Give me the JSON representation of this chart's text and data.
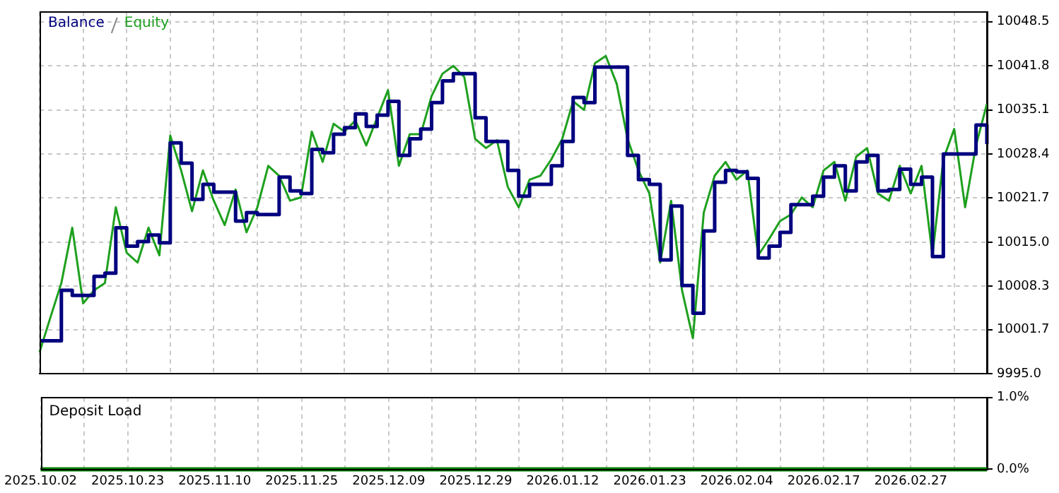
{
  "chart_data": [
    {
      "type": "line",
      "legend": "top left",
      "grid": true,
      "marker": "none",
      "tick_labels": "y",
      "categories": [
        "2025.10.02",
        null,
        null,
        null,
        null,
        null,
        null,
        null,
        "2025.10.23",
        null,
        null,
        null,
        null,
        null,
        null,
        null,
        "2025.11.10",
        null,
        null,
        null,
        null,
        null,
        null,
        null,
        "2025.11.25",
        null,
        null,
        null,
        null,
        null,
        null,
        null,
        "2025.12.09",
        null,
        null,
        null,
        null,
        null,
        null,
        null,
        "2025.12.29",
        null,
        null,
        null,
        null,
        null,
        null,
        null,
        "2026.01.12",
        null,
        null,
        null,
        null,
        null,
        null,
        null,
        "2026.01.23",
        null,
        null,
        null,
        null,
        null,
        null,
        null,
        "2026.02.04",
        null,
        null,
        null,
        null,
        null,
        null,
        null,
        "2026.02.17",
        null,
        null,
        null,
        null,
        null,
        null,
        null,
        "2026.02.27",
        null,
        null,
        null,
        null,
        null,
        null,
        null
      ],
      "ylim": [
        9995,
        10050
      ],
      "yticks": [
        {
          "value": 9995,
          "label": "9995.0"
        },
        10001.7,
        10008.3,
        {
          "value": 10015,
          "label": "10015.0"
        },
        10021.7,
        10028.4,
        10035.1,
        10041.8,
        10048.5
      ],
      "series": [
        {
          "name": "Balance",
          "type": "step",
          "color": "#00007f",
          "values": [
            10000.0,
            10000.0,
            10007.7,
            10006.9,
            10006.9,
            10009.8,
            10010.3,
            10017.2,
            10014.4,
            10015.1,
            10016.1,
            10014.9,
            10030.1,
            10027.0,
            10021.5,
            10023.8,
            10022.6,
            10022.6,
            10018.2,
            10019.5,
            10019.2,
            10019.2,
            10024.9,
            10022.8,
            10022.4,
            10029.1,
            10028.6,
            10031.4,
            10032.4,
            10034.5,
            10032.6,
            10034.3,
            10036.4,
            10028.2,
            10030.7,
            10032.2,
            10036.2,
            10039.5,
            10040.6,
            10040.6,
            10033.9,
            10030.3,
            10030.3,
            10025.9,
            10022.0,
            10023.8,
            10023.8,
            10026.6,
            10030.3,
            10037.0,
            10036.2,
            10041.6,
            10041.6,
            10041.6,
            10028.2,
            10024.5,
            10023.8,
            10012.3,
            10020.5,
            10008.4,
            10004.2,
            10016.7,
            10024.1,
            10025.9,
            10025.7,
            10024.7,
            10012.6,
            10014.4,
            10016.5,
            10020.7,
            10020.7,
            10022.0,
            10024.9,
            10026.6,
            10022.8,
            10027.2,
            10028.2,
            10022.8,
            10023.0,
            10026.1,
            10023.8,
            10024.9,
            10012.8,
            10028.4,
            10028.4,
            10028.4,
            10032.8,
            10029.9
          ]
        },
        {
          "name": "Equity",
          "type": "line",
          "color": "#1ea01e",
          "values": [
            9998.3,
            10003.6,
            10008.8,
            10017.2,
            10005.7,
            10007.7,
            10008.8,
            10020.3,
            10013.4,
            10011.9,
            10017.2,
            10013.0,
            10031.2,
            10025.9,
            10019.7,
            10025.9,
            10021.3,
            10017.6,
            10023.0,
            10016.5,
            10020.3,
            10026.6,
            10025.1,
            10021.3,
            10021.8,
            10031.8,
            10027.2,
            10033.0,
            10031.8,
            10033.5,
            10029.7,
            10033.9,
            10038.1,
            10026.6,
            10031.4,
            10031.4,
            10037.2,
            10040.6,
            10041.8,
            10040.1,
            10030.7,
            10029.3,
            10030.5,
            10023.4,
            10020.3,
            10024.5,
            10025.1,
            10027.6,
            10030.7,
            10036.4,
            10035.1,
            10042.2,
            10043.3,
            10039.1,
            10030.7,
            10025.9,
            10022.4,
            10011.9,
            10021.3,
            10007.7,
            10000.4,
            10019.5,
            10025.1,
            10027.2,
            10024.5,
            10025.9,
            10013.0,
            10015.5,
            10018.2,
            10019.2,
            10021.8,
            10020.3,
            10025.9,
            10027.2,
            10021.3,
            10028.0,
            10029.3,
            10022.4,
            10021.3,
            10026.6,
            10022.4,
            10026.6,
            10013.0,
            10027.6,
            10032.2,
            10020.3,
            10029.7,
            10036.0
          ]
        }
      ]
    },
    {
      "type": "line",
      "title": "Deposit Load",
      "grid": true,
      "marker": "none",
      "categories": [
        "2025.10.02",
        null,
        null,
        null,
        null,
        null,
        null,
        null,
        "2025.10.23",
        null,
        null,
        null,
        null,
        null,
        null,
        null,
        "2025.11.10",
        null,
        null,
        null,
        null,
        null,
        null,
        null,
        "2025.11.25",
        null,
        null,
        null,
        null,
        null,
        null,
        null,
        "2025.12.09",
        null,
        null,
        null,
        null,
        null,
        null,
        null,
        "2025.12.29",
        null,
        null,
        null,
        null,
        null,
        null,
        null,
        "2026.01.12",
        null,
        null,
        null,
        null,
        null,
        null,
        null,
        "2026.01.23",
        null,
        null,
        null,
        null,
        null,
        null,
        null,
        "2026.02.04",
        null,
        null,
        null,
        null,
        null,
        null,
        null,
        "2026.02.17",
        null,
        null,
        null,
        null,
        null,
        null,
        null,
        "2026.02.27",
        null,
        null,
        null,
        null,
        null,
        null,
        null
      ],
      "ylim": [
        0,
        1
      ],
      "yticks": [
        {
          "value": 0,
          "label": "0.0%"
        },
        {
          "value": 1,
          "label": "1.0%"
        }
      ],
      "series": [
        {
          "color": "#008000",
          "values": [
            0,
            0,
            0,
            0,
            0,
            0,
            0,
            0,
            0,
            0,
            0,
            0,
            0,
            0,
            0,
            0,
            0,
            0,
            0,
            0,
            0,
            0,
            0,
            0,
            0,
            0,
            0,
            0,
            0,
            0,
            0,
            0,
            0,
            0,
            0,
            0,
            0,
            0,
            0,
            0,
            0,
            0,
            0,
            0,
            0,
            0,
            0,
            0,
            0,
            0,
            0,
            0,
            0,
            0,
            0,
            0,
            0,
            0,
            0,
            0,
            0,
            0,
            0,
            0,
            0,
            0,
            0,
            0,
            0,
            0,
            0,
            0,
            0,
            0,
            0,
            0,
            0,
            0,
            0,
            0,
            0,
            0,
            0,
            0,
            0,
            0,
            0,
            0
          ]
        }
      ]
    }
  ]
}
